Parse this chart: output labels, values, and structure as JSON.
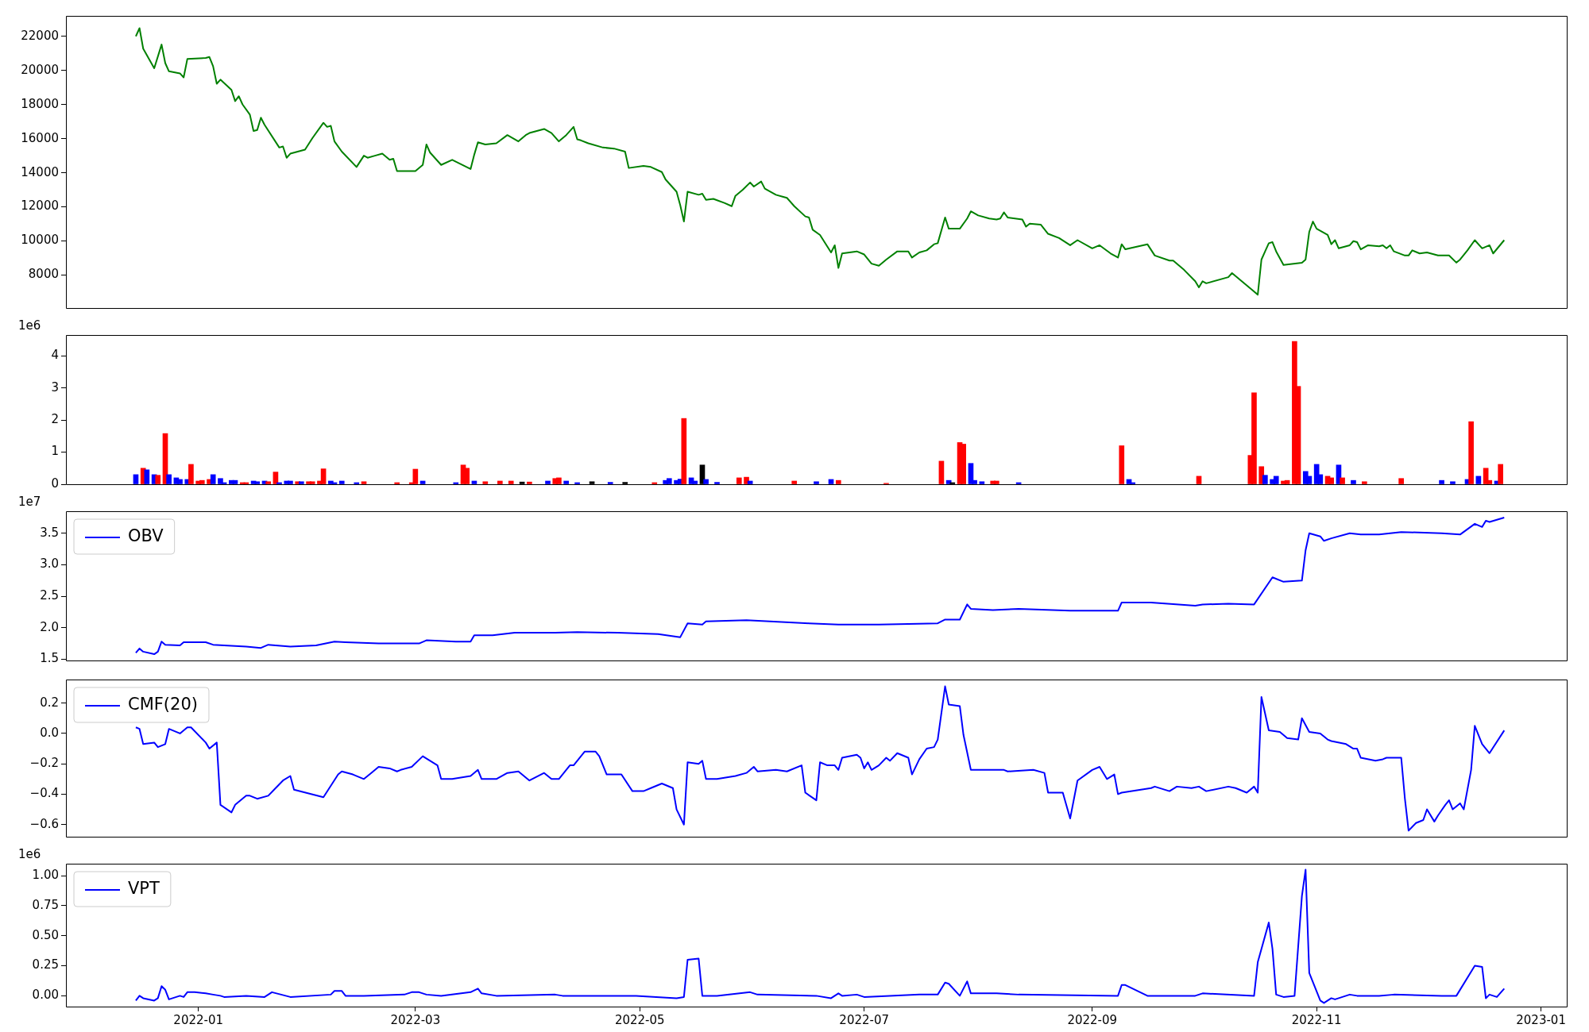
{
  "chart_data": [
    {
      "type": "line",
      "color": "#008000",
      "tick_labels": "y",
      "xlim": [
        "2021-11-26",
        "2023-01-08"
      ],
      "ylim": [
        6070,
        23200
      ],
      "yticks": [
        8000,
        10000,
        12000,
        14000,
        16000,
        18000,
        20000,
        22000
      ],
      "x": [
        "2021-12-15",
        "2021-12-16",
        "2021-12-17",
        "2021-12-20",
        "2021-12-22",
        "2021-12-23",
        "2021-12-24",
        "2021-12-27",
        "2021-12-28",
        "2021-12-29",
        "2022-01-03",
        "2022-01-04",
        "2022-01-05",
        "2022-01-06",
        "2022-01-07",
        "2022-01-10",
        "2022-01-11",
        "2022-01-12",
        "2022-01-13",
        "2022-01-15",
        "2022-01-16",
        "2022-01-17",
        "2022-01-18",
        "2022-01-19",
        "2022-01-23",
        "2022-01-24",
        "2022-01-25",
        "2022-01-26",
        "2022-01-30",
        "2022-02-01",
        "2022-02-04",
        "2022-02-05",
        "2022-02-06",
        "2022-02-07",
        "2022-02-09",
        "2022-02-13",
        "2022-02-15",
        "2022-02-16",
        "2022-02-18",
        "2022-02-20",
        "2022-02-22",
        "2022-02-23",
        "2022-02-24",
        "2022-02-26",
        "2022-03-01",
        "2022-03-03",
        "2022-03-04",
        "2022-03-05",
        "2022-03-08",
        "2022-03-11",
        "2022-03-16",
        "2022-03-17",
        "2022-03-18",
        "2022-03-20",
        "2022-03-23",
        "2022-03-26",
        "2022-03-29",
        "2022-03-31",
        "2022-04-01",
        "2022-04-05",
        "2022-04-07",
        "2022-04-09",
        "2022-04-11",
        "2022-04-13",
        "2022-04-14",
        "2022-04-15",
        "2022-04-17",
        "2022-04-21",
        "2022-04-24",
        "2022-04-27",
        "2022-04-28",
        "2022-05-02",
        "2022-05-04",
        "2022-05-07",
        "2022-05-08",
        "2022-05-11",
        "2022-05-12",
        "2022-05-13",
        "2022-05-14",
        "2022-05-17",
        "2022-05-18",
        "2022-05-19",
        "2022-05-21",
        "2022-05-24",
        "2022-05-26",
        "2022-05-27",
        "2022-05-29",
        "2022-05-31",
        "2022-06-01",
        "2022-06-03",
        "2022-06-04",
        "2022-06-07",
        "2022-06-09",
        "2022-06-10",
        "2022-06-12",
        "2022-06-15",
        "2022-06-16",
        "2022-06-17",
        "2022-06-19",
        "2022-06-22",
        "2022-06-23",
        "2022-06-24",
        "2022-06-25",
        "2022-06-29",
        "2022-07-01",
        "2022-07-03",
        "2022-07-05",
        "2022-07-07",
        "2022-07-10",
        "2022-07-13",
        "2022-07-14",
        "2022-07-16",
        "2022-07-18",
        "2022-07-20",
        "2022-07-21",
        "2022-07-23",
        "2022-07-24",
        "2022-07-27",
        "2022-07-29",
        "2022-07-30",
        "2022-08-01",
        "2022-08-04",
        "2022-08-06",
        "2022-08-07",
        "2022-08-08",
        "2022-08-09",
        "2022-08-13",
        "2022-08-14",
        "2022-08-15",
        "2022-08-18",
        "2022-08-20",
        "2022-08-23",
        "2022-08-26",
        "2022-08-28",
        "2022-09-01",
        "2022-09-03",
        "2022-09-06",
        "2022-09-08",
        "2022-09-09",
        "2022-09-10",
        "2022-09-16",
        "2022-09-18",
        "2022-09-22",
        "2022-09-23",
        "2022-09-26",
        "2022-09-29",
        "2022-09-30",
        "2022-10-01",
        "2022-10-02",
        "2022-10-08",
        "2022-10-09",
        "2022-10-15",
        "2022-10-16",
        "2022-10-17",
        "2022-10-18",
        "2022-10-19",
        "2022-10-20",
        "2022-10-21",
        "2022-10-23",
        "2022-10-28",
        "2022-10-29",
        "2022-10-30",
        "2022-10-31",
        "2022-11-01",
        "2022-11-04",
        "2022-11-05",
        "2022-11-06",
        "2022-11-07",
        "2022-11-10",
        "2022-11-11",
        "2022-11-12",
        "2022-11-13",
        "2022-11-15",
        "2022-11-18",
        "2022-11-19",
        "2022-11-20",
        "2022-11-21",
        "2022-11-22",
        "2022-11-25",
        "2022-11-26",
        "2022-11-27",
        "2022-11-29",
        "2022-12-01",
        "2022-12-04",
        "2022-12-07",
        "2022-12-09",
        "2022-12-10",
        "2022-12-12",
        "2022-12-14",
        "2022-12-16",
        "2022-12-18",
        "2022-12-19",
        "2022-12-22"
      ],
      "values": [
        22000,
        22480,
        21280,
        20130,
        21520,
        20430,
        19950,
        19830,
        19590,
        20670,
        20730,
        20790,
        20250,
        19220,
        19460,
        18860,
        18200,
        18490,
        18010,
        17410,
        16450,
        16510,
        17230,
        16810,
        15480,
        15540,
        14880,
        15120,
        15360,
        16030,
        16930,
        16690,
        16750,
        15840,
        15240,
        14340,
        15000,
        14880,
        15000,
        15120,
        14760,
        14820,
        14100,
        14100,
        14100,
        14460,
        15660,
        15180,
        14460,
        14760,
        14220,
        15060,
        15790,
        15660,
        15730,
        16210,
        15840,
        16210,
        16330,
        16570,
        16330,
        15840,
        16210,
        16690,
        15960,
        15900,
        15730,
        15480,
        15420,
        15240,
        14280,
        14400,
        14340,
        14040,
        13610,
        12890,
        12100,
        11140,
        12890,
        12710,
        12770,
        12410,
        12470,
        12230,
        12040,
        12650,
        13010,
        13430,
        13190,
        13490,
        13070,
        12710,
        12590,
        12530,
        12040,
        11440,
        11380,
        10660,
        10350,
        9330,
        9750,
        8420,
        9270,
        9390,
        9210,
        8670,
        8550,
        8910,
        9390,
        9390,
        9030,
        9330,
        9450,
        9810,
        9870,
        11380,
        10720,
        10720,
        11320,
        11740,
        11500,
        11320,
        11260,
        11320,
        11680,
        11380,
        11260,
        10840,
        11020,
        10960,
        10420,
        10170,
        9750,
        10050,
        9570,
        9750,
        9270,
        9030,
        9810,
        9510,
        9810,
        9150,
        8850,
        8850,
        8300,
        7640,
        7280,
        7640,
        7520,
        7880,
        8120,
        7040,
        6850,
        8910,
        9390,
        9870,
        9930,
        9390,
        8600,
        8720,
        8910,
        10540,
        11140,
        10720,
        10360,
        9810,
        10050,
        9570,
        9750,
        9990,
        9930,
        9510,
        9750,
        9690,
        9750,
        9570,
        9750,
        9390,
        9150,
        9150,
        9450,
        9270,
        9330,
        9150,
        9150,
        8730,
        8910,
        9450,
        10050,
        9570,
        9750,
        9270,
        10050
      ]
    },
    {
      "type": "bar",
      "tick_labels": "y",
      "annotations": [
        "1e6"
      ],
      "xlim": [
        "2021-11-26",
        "2023-01-08"
      ],
      "ylim": [
        0,
        4.65
      ],
      "yticks": [
        0,
        1,
        2,
        3,
        4
      ],
      "x": [
        "2021-12-15",
        "2021-12-17",
        "2021-12-18",
        "2021-12-20",
        "2021-12-21",
        "2021-12-23",
        "2021-12-24",
        "2021-12-26",
        "2021-12-27",
        "2021-12-29",
        "2021-12-30",
        "2022-01-01",
        "2022-01-02",
        "2022-01-04",
        "2022-01-05",
        "2022-01-07",
        "2022-01-08",
        "2022-01-10",
        "2022-01-11",
        "2022-01-13",
        "2022-01-14",
        "2022-01-16",
        "2022-01-17",
        "2022-01-19",
        "2022-01-20",
        "2022-01-22",
        "2022-01-23",
        "2022-01-25",
        "2022-01-26",
        "2022-01-28",
        "2022-01-29",
        "2022-01-31",
        "2022-02-01",
        "2022-02-03",
        "2022-02-04",
        "2022-02-06",
        "2022-02-07",
        "2022-02-09",
        "2022-02-13",
        "2022-02-15",
        "2022-02-24",
        "2022-02-28",
        "2022-03-01",
        "2022-03-03",
        "2022-03-12",
        "2022-03-14",
        "2022-03-15",
        "2022-03-17",
        "2022-03-20",
        "2022-03-24",
        "2022-03-27",
        "2022-03-30",
        "2022-04-01",
        "2022-04-06",
        "2022-04-08",
        "2022-04-09",
        "2022-04-11",
        "2022-04-14",
        "2022-04-18",
        "2022-04-23",
        "2022-04-27",
        "2022-05-05",
        "2022-05-08",
        "2022-05-09",
        "2022-05-11",
        "2022-05-12",
        "2022-05-13",
        "2022-05-15",
        "2022-05-16",
        "2022-05-18",
        "2022-05-19",
        "2022-05-22",
        "2022-05-28",
        "2022-05-30",
        "2022-05-31",
        "2022-06-12",
        "2022-06-18",
        "2022-06-22",
        "2022-06-24",
        "2022-07-07",
        "2022-07-22",
        "2022-07-24",
        "2022-07-25",
        "2022-07-27",
        "2022-07-28",
        "2022-07-30",
        "2022-07-31",
        "2022-08-02",
        "2022-08-05",
        "2022-08-06",
        "2022-08-12",
        "2022-09-09",
        "2022-09-11",
        "2022-09-12",
        "2022-09-30",
        "2022-10-14",
        "2022-10-15",
        "2022-10-17",
        "2022-10-18",
        "2022-10-20",
        "2022-10-21",
        "2022-10-23",
        "2022-10-24",
        "2022-10-26",
        "2022-10-27",
        "2022-10-29",
        "2022-10-30",
        "2022-11-01",
        "2022-11-02",
        "2022-11-04",
        "2022-11-05",
        "2022-11-07",
        "2022-11-08",
        "2022-11-11",
        "2022-11-14",
        "2022-11-24",
        "2022-12-05",
        "2022-12-08",
        "2022-12-12",
        "2022-12-13",
        "2022-12-15",
        "2022-12-17",
        "2022-12-18",
        "2022-12-20",
        "2022-12-21"
      ],
      "values": [
        0.3,
        0.5,
        0.45,
        0.3,
        0.28,
        1.58,
        0.3,
        0.2,
        0.15,
        0.15,
        0.62,
        0.1,
        0.12,
        0.15,
        0.3,
        0.18,
        0.05,
        0.12,
        0.12,
        0.05,
        0.05,
        0.1,
        0.08,
        0.1,
        0.08,
        0.38,
        0.05,
        0.1,
        0.1,
        0.08,
        0.08,
        0.08,
        0.08,
        0.1,
        0.48,
        0.1,
        0.05,
        0.1,
        0.05,
        0.08,
        0.05,
        0.05,
        0.47,
        0.1,
        0.05,
        0.6,
        0.5,
        0.1,
        0.08,
        0.1,
        0.1,
        0.07,
        0.07,
        0.1,
        0.18,
        0.2,
        0.1,
        0.05,
        0.08,
        0.06,
        0.06,
        0.05,
        0.12,
        0.18,
        0.12,
        0.16,
        2.05,
        0.2,
        0.1,
        0.6,
        0.15,
        0.06,
        0.2,
        0.22,
        0.1,
        0.1,
        0.08,
        0.15,
        0.12,
        0.03,
        0.72,
        0.12,
        0.05,
        1.3,
        1.25,
        0.65,
        0.12,
        0.08,
        0.1,
        0.1,
        0.05,
        1.2,
        0.15,
        0.05,
        0.25,
        0.9,
        2.85,
        0.55,
        0.28,
        0.15,
        0.25,
        0.1,
        0.12,
        4.45,
        3.05,
        0.4,
        0.25,
        0.62,
        0.3,
        0.25,
        0.2,
        0.6,
        0.2,
        0.12,
        0.08,
        0.18,
        0.12,
        0.08,
        0.15,
        1.95,
        0.25,
        0.5,
        0.12,
        0.1,
        0.62
      ],
      "colors": [
        "#0000ff",
        "#ff0000",
        "#0000ff",
        "#0000ff",
        "#ff0000",
        "#ff0000",
        "#0000ff",
        "#0000ff",
        "#0000ff",
        "#0000ff",
        "#ff0000",
        "#ff0000",
        "#ff0000",
        "#ff0000",
        "#0000ff",
        "#0000ff",
        "#0000ff",
        "#0000ff",
        "#0000ff",
        "#ff0000",
        "#ff0000",
        "#0000ff",
        "#0000ff",
        "#0000ff",
        "#ff0000",
        "#ff0000",
        "#0000ff",
        "#0000ff",
        "#0000ff",
        "#ff0000",
        "#0000ff",
        "#ff0000",
        "#ff0000",
        "#ff0000",
        "#ff0000",
        "#0000ff",
        "#0000ff",
        "#0000ff",
        "#0000ff",
        "#ff0000",
        "#ff0000",
        "#ff0000",
        "#ff0000",
        "#0000ff",
        "#0000ff",
        "#ff0000",
        "#ff0000",
        "#0000ff",
        "#ff0000",
        "#ff0000",
        "#ff0000",
        "#000000",
        "#ff0000",
        "#0000ff",
        "#ff0000",
        "#ff0000",
        "#0000ff",
        "#0000ff",
        "#000000",
        "#0000ff",
        "#000000",
        "#ff0000",
        "#0000ff",
        "#0000ff",
        "#0000ff",
        "#0000ff",
        "#ff0000",
        "#0000ff",
        "#0000ff",
        "#000000",
        "#0000ff",
        "#0000ff",
        "#ff0000",
        "#ff0000",
        "#0000ff",
        "#ff0000",
        "#0000ff",
        "#0000ff",
        "#ff0000",
        "#ff0000",
        "#ff0000",
        "#0000ff",
        "#000000",
        "#ff0000",
        "#ff0000",
        "#0000ff",
        "#0000ff",
        "#0000ff",
        "#ff0000",
        "#ff0000",
        "#0000ff",
        "#ff0000",
        "#0000ff",
        "#0000ff",
        "#ff0000",
        "#ff0000",
        "#ff0000",
        "#ff0000",
        "#0000ff",
        "#0000ff",
        "#0000ff",
        "#ff0000",
        "#ff0000",
        "#ff0000",
        "#ff0000",
        "#0000ff",
        "#0000ff",
        "#0000ff",
        "#0000ff",
        "#ff0000",
        "#ff0000",
        "#0000ff",
        "#ff0000",
        "#0000ff",
        "#ff0000",
        "#ff0000",
        "#0000ff",
        "#0000ff",
        "#0000ff",
        "#ff0000",
        "#0000ff",
        "#ff0000",
        "#ff0000",
        "#0000ff",
        "#ff0000"
      ]
    },
    {
      "type": "line",
      "tick_labels": "y",
      "legend": "top left",
      "annotations": [
        "1e7"
      ],
      "xlim": [
        "2021-11-26",
        "2023-01-08"
      ],
      "ylim": [
        1.48,
        3.85
      ],
      "yticks": [
        1.5,
        {
          "value": 2,
          "label": "2.0"
        },
        2.5,
        {
          "value": 3,
          "label": "3.0"
        },
        3.5
      ],
      "x": [
        "2021-12-15",
        "2021-12-16",
        "2021-12-17",
        "2021-12-20",
        "2021-12-21",
        "2021-12-22",
        "2021-12-23",
        "2021-12-27",
        "2021-12-28",
        "2022-01-03",
        "2022-01-05",
        "2022-01-14",
        "2022-01-18",
        "2022-01-20",
        "2022-01-26",
        "2022-02-02",
        "2022-02-07",
        "2022-02-10",
        "2022-02-19",
        "2022-03-02",
        "2022-03-04",
        "2022-03-12",
        "2022-03-16",
        "2022-03-17",
        "2022-03-22",
        "2022-03-28",
        "2022-04-08",
        "2022-04-14",
        "2022-04-25",
        "2022-05-06",
        "2022-05-12",
        "2022-05-14",
        "2022-05-18",
        "2022-05-19",
        "2022-05-30",
        "2022-06-16",
        "2022-06-24",
        "2022-07-05",
        "2022-07-21",
        "2022-07-23",
        "2022-07-27",
        "2022-07-29",
        "2022-07-30",
        "2022-08-05",
        "2022-08-12",
        "2022-08-26",
        "2022-09-08",
        "2022-09-09",
        "2022-09-17",
        "2022-09-29",
        "2022-10-01",
        "2022-10-08",
        "2022-10-15",
        "2022-10-20",
        "2022-10-23",
        "2022-10-28",
        "2022-10-29",
        "2022-10-30",
        "2022-11-02",
        "2022-11-03",
        "2022-11-05",
        "2022-11-10",
        "2022-11-13",
        "2022-11-18",
        "2022-11-24",
        "2022-12-05",
        "2022-12-10",
        "2022-12-14",
        "2022-12-16",
        "2022-12-17",
        "2022-12-18",
        "2022-12-22"
      ],
      "series": [
        {
          "name": "OBV",
          "color": "#0000ff",
          "values": [
            1.6,
            1.67,
            1.62,
            1.58,
            1.62,
            1.78,
            1.73,
            1.72,
            1.77,
            1.77,
            1.73,
            1.7,
            1.68,
            1.73,
            1.7,
            1.72,
            1.78,
            1.77,
            1.75,
            1.75,
            1.8,
            1.78,
            1.78,
            1.88,
            1.88,
            1.92,
            1.92,
            1.93,
            1.92,
            1.9,
            1.85,
            2.07,
            2.05,
            2.1,
            2.12,
            2.07,
            2.05,
            2.05,
            2.07,
            2.13,
            2.13,
            2.37,
            2.3,
            2.28,
            2.3,
            2.27,
            2.27,
            2.4,
            2.4,
            2.35,
            2.37,
            2.38,
            2.37,
            2.8,
            2.73,
            2.75,
            3.23,
            3.5,
            3.45,
            3.38,
            3.42,
            3.5,
            3.48,
            3.48,
            3.52,
            3.5,
            3.48,
            3.65,
            3.6,
            3.7,
            3.68,
            3.75
          ]
        }
      ]
    },
    {
      "type": "line",
      "tick_labels": "y",
      "legend": "top left",
      "xlim": [
        "2021-11-26",
        "2023-01-08"
      ],
      "ylim": [
        -0.68,
        0.355
      ],
      "yticks": [
        {
          "value": -0.6,
          "label": "−0.6"
        },
        {
          "value": -0.4,
          "label": "−0.4"
        },
        {
          "value": -0.2,
          "label": "−0.2"
        },
        {
          "value": 0,
          "label": "0.0"
        },
        {
          "value": 0.2,
          "label": "0.2"
        }
      ],
      "x": [
        "2021-12-15",
        "2021-12-16",
        "2021-12-17",
        "2021-12-20",
        "2021-12-21",
        "2021-12-23",
        "2021-12-24",
        "2021-12-27",
        "2021-12-29",
        "2021-12-30",
        "2022-01-03",
        "2022-01-04",
        "2022-01-06",
        "2022-01-07",
        "2022-01-10",
        "2022-01-11",
        "2022-01-14",
        "2022-01-15",
        "2022-01-17",
        "2022-01-20",
        "2022-01-22",
        "2022-01-24",
        "2022-01-26",
        "2022-01-27",
        "2022-02-04",
        "2022-02-08",
        "2022-02-09",
        "2022-02-12",
        "2022-02-15",
        "2022-02-17",
        "2022-02-19",
        "2022-02-22",
        "2022-02-24",
        "2022-02-25",
        "2022-02-28",
        "2022-03-03",
        "2022-03-07",
        "2022-03-08",
        "2022-03-11",
        "2022-03-16",
        "2022-03-18",
        "2022-03-19",
        "2022-03-23",
        "2022-03-26",
        "2022-03-29",
        "2022-04-01",
        "2022-04-05",
        "2022-04-07",
        "2022-04-09",
        "2022-04-12",
        "2022-04-13",
        "2022-04-16",
        "2022-04-19",
        "2022-04-20",
        "2022-04-22",
        "2022-04-26",
        "2022-04-29",
        "2022-05-02",
        "2022-05-04",
        "2022-05-07",
        "2022-05-10",
        "2022-05-11",
        "2022-05-13",
        "2022-05-14",
        "2022-05-17",
        "2022-05-18",
        "2022-05-19",
        "2022-05-22",
        "2022-05-27",
        "2022-05-30",
        "2022-06-01",
        "2022-06-02",
        "2022-06-07",
        "2022-06-10",
        "2022-06-14",
        "2022-06-15",
        "2022-06-18",
        "2022-06-19",
        "2022-06-21",
        "2022-06-23",
        "2022-06-24",
        "2022-06-25",
        "2022-06-29",
        "2022-06-30",
        "2022-07-01",
        "2022-07-02",
        "2022-07-03",
        "2022-07-05",
        "2022-07-07",
        "2022-07-08",
        "2022-07-10",
        "2022-07-13",
        "2022-07-14",
        "2022-07-16",
        "2022-07-18",
        "2022-07-20",
        "2022-07-21",
        "2022-07-23",
        "2022-07-24",
        "2022-07-27",
        "2022-07-28",
        "2022-07-30",
        "2022-08-02",
        "2022-08-05",
        "2022-08-06",
        "2022-08-08",
        "2022-08-09",
        "2022-08-16",
        "2022-08-19",
        "2022-08-20",
        "2022-08-24",
        "2022-08-26",
        "2022-08-28",
        "2022-09-01",
        "2022-09-03",
        "2022-09-05",
        "2022-09-07",
        "2022-09-08",
        "2022-09-09",
        "2022-09-17",
        "2022-09-18",
        "2022-09-22",
        "2022-09-24",
        "2022-09-28",
        "2022-09-30",
        "2022-10-02",
        "2022-10-08",
        "2022-10-10",
        "2022-10-13",
        "2022-10-15",
        "2022-10-16",
        "2022-10-17",
        "2022-10-19",
        "2022-10-22",
        "2022-10-24",
        "2022-10-27",
        "2022-10-28",
        "2022-10-30",
        "2022-11-02",
        "2022-11-04",
        "2022-11-05",
        "2022-11-09",
        "2022-11-11",
        "2022-11-12",
        "2022-11-13",
        "2022-11-17",
        "2022-11-19",
        "2022-11-20",
        "2022-11-24",
        "2022-11-25",
        "2022-11-26",
        "2022-11-28",
        "2022-11-30",
        "2022-12-01",
        "2022-12-03",
        "2022-12-04",
        "2022-12-06",
        "2022-12-07",
        "2022-12-08",
        "2022-12-10",
        "2022-12-11",
        "2022-12-13",
        "2022-12-14",
        "2022-12-16",
        "2022-12-17",
        "2022-12-18",
        "2022-12-22"
      ],
      "series": [
        {
          "name": "CMF(20)",
          "color": "#0000ff",
          "values": [
            0.04,
            0.03,
            -0.07,
            -0.06,
            -0.09,
            -0.07,
            0.03,
            0.0,
            0.04,
            0.04,
            -0.06,
            -0.1,
            -0.06,
            -0.47,
            -0.52,
            -0.47,
            -0.41,
            -0.41,
            -0.43,
            -0.41,
            -0.36,
            -0.31,
            -0.28,
            -0.37,
            -0.42,
            -0.27,
            -0.25,
            -0.27,
            -0.3,
            -0.26,
            -0.22,
            -0.23,
            -0.25,
            -0.24,
            -0.22,
            -0.15,
            -0.21,
            -0.3,
            -0.3,
            -0.28,
            -0.24,
            -0.3,
            -0.3,
            -0.26,
            -0.25,
            -0.31,
            -0.26,
            -0.3,
            -0.3,
            -0.21,
            -0.21,
            -0.12,
            -0.12,
            -0.15,
            -0.27,
            -0.27,
            -0.38,
            -0.38,
            -0.36,
            -0.33,
            -0.36,
            -0.5,
            -0.6,
            -0.19,
            -0.2,
            -0.18,
            -0.3,
            -0.3,
            -0.28,
            -0.26,
            -0.22,
            -0.25,
            -0.24,
            -0.25,
            -0.21,
            -0.39,
            -0.44,
            -0.19,
            -0.21,
            -0.21,
            -0.24,
            -0.16,
            -0.14,
            -0.16,
            -0.23,
            -0.19,
            -0.24,
            -0.21,
            -0.16,
            -0.18,
            -0.13,
            -0.16,
            -0.27,
            -0.17,
            -0.1,
            -0.09,
            -0.04,
            0.31,
            0.19,
            0.18,
            -0.01,
            -0.24,
            -0.24,
            -0.24,
            -0.24,
            -0.24,
            -0.25,
            -0.24,
            -0.26,
            -0.39,
            -0.39,
            -0.56,
            -0.31,
            -0.24,
            -0.22,
            -0.3,
            -0.27,
            -0.4,
            -0.39,
            -0.36,
            -0.35,
            -0.38,
            -0.35,
            -0.36,
            -0.35,
            -0.38,
            -0.35,
            -0.36,
            -0.39,
            -0.35,
            -0.39,
            0.24,
            0.02,
            0.01,
            -0.03,
            -0.04,
            0.1,
            0.01,
            0.0,
            -0.04,
            -0.05,
            -0.07,
            -0.1,
            -0.1,
            -0.16,
            -0.18,
            -0.17,
            -0.16,
            -0.16,
            -0.43,
            -0.64,
            -0.59,
            -0.57,
            -0.5,
            -0.58,
            -0.54,
            -0.47,
            -0.44,
            -0.5,
            -0.46,
            -0.5,
            -0.24,
            0.05,
            -0.07,
            -0.1,
            -0.13,
            0.02
          ]
        }
      ]
    },
    {
      "type": "line",
      "legend": "top left",
      "annotations": [
        "1e6"
      ],
      "xlim": [
        "2021-11-26",
        "2023-01-08"
      ],
      "xticks": [
        "2022-01",
        "2022-03",
        "2022-05",
        "2022-07",
        "2022-09",
        "2022-11",
        "2023-01"
      ],
      "ylim": [
        -0.09,
        1.1
      ],
      "yticks": [
        {
          "value": 0,
          "label": "0.00"
        },
        0.25,
        {
          "value": 0.5,
          "label": "0.50"
        },
        0.75,
        {
          "value": 1,
          "label": "1.00"
        }
      ],
      "x": [
        "2021-12-15",
        "2021-12-16",
        "2021-12-17",
        "2021-12-20",
        "2021-12-21",
        "2021-12-22",
        "2021-12-23",
        "2021-12-24",
        "2021-12-27",
        "2021-12-28",
        "2021-12-29",
        "2021-12-31",
        "2022-01-03",
        "2022-01-05",
        "2022-01-07",
        "2022-01-08",
        "2022-01-14",
        "2022-01-19",
        "2022-01-21",
        "2022-01-26",
        "2022-02-06",
        "2022-02-07",
        "2022-02-09",
        "2022-02-10",
        "2022-02-15",
        "2022-02-26",
        "2022-02-28",
        "2022-03-02",
        "2022-03-04",
        "2022-03-08",
        "2022-03-16",
        "2022-03-18",
        "2022-03-19",
        "2022-03-23",
        "2022-04-08",
        "2022-04-10",
        "2022-04-14",
        "2022-04-30",
        "2022-05-11",
        "2022-05-13",
        "2022-05-14",
        "2022-05-17",
        "2022-05-18",
        "2022-05-22",
        "2022-05-31",
        "2022-06-02",
        "2022-06-18",
        "2022-06-22",
        "2022-06-24",
        "2022-06-25",
        "2022-06-29",
        "2022-07-01",
        "2022-07-16",
        "2022-07-21",
        "2022-07-23",
        "2022-07-24",
        "2022-07-27",
        "2022-07-29",
        "2022-07-30",
        "2022-08-06",
        "2022-08-12",
        "2022-09-08",
        "2022-09-09",
        "2022-09-10",
        "2022-09-16",
        "2022-09-29",
        "2022-10-01",
        "2022-10-15",
        "2022-10-16",
        "2022-10-19",
        "2022-10-20",
        "2022-10-21",
        "2022-10-23",
        "2022-10-26",
        "2022-10-28",
        "2022-10-29",
        "2022-10-30",
        "2022-11-02",
        "2022-11-03",
        "2022-11-05",
        "2022-11-06",
        "2022-11-10",
        "2022-11-12",
        "2022-11-18",
        "2022-11-22",
        "2022-12-05",
        "2022-12-09",
        "2022-12-14",
        "2022-12-16",
        "2022-12-17",
        "2022-12-18",
        "2022-12-20",
        "2022-12-22"
      ],
      "series": [
        {
          "name": "VPT",
          "color": "#0000ff",
          "values": [
            -0.04,
            0,
            -0.02,
            -0.04,
            -0.02,
            0.08,
            0.05,
            -0.03,
            0,
            -0.01,
            0.03,
            0.03,
            0.02,
            0.01,
            0,
            -0.01,
            0,
            -0.01,
            0.03,
            -0.01,
            0.01,
            0.04,
            0.04,
            0,
            0,
            0.01,
            0.03,
            0.03,
            0.01,
            0,
            0.03,
            0.06,
            0.02,
            0,
            0.01,
            0,
            0,
            0,
            -0.02,
            -0.01,
            0.3,
            0.31,
            0,
            0,
            0.03,
            0.01,
            0,
            -0.02,
            0.02,
            0,
            0.01,
            -0.01,
            0.01,
            0.01,
            0.11,
            0.1,
            0,
            0.12,
            0.02,
            0.02,
            0.01,
            0,
            0.09,
            0.09,
            0,
            0,
            0.02,
            0,
            0.28,
            0.61,
            0.39,
            0.01,
            -0.01,
            0,
            0.83,
            1.05,
            0.19,
            -0.04,
            -0.06,
            -0.02,
            -0.03,
            0.01,
            0,
            0,
            0.01,
            0,
            0,
            0.25,
            0.24,
            -0.02,
            0.01,
            -0.01,
            0.06
          ]
        }
      ]
    }
  ]
}
